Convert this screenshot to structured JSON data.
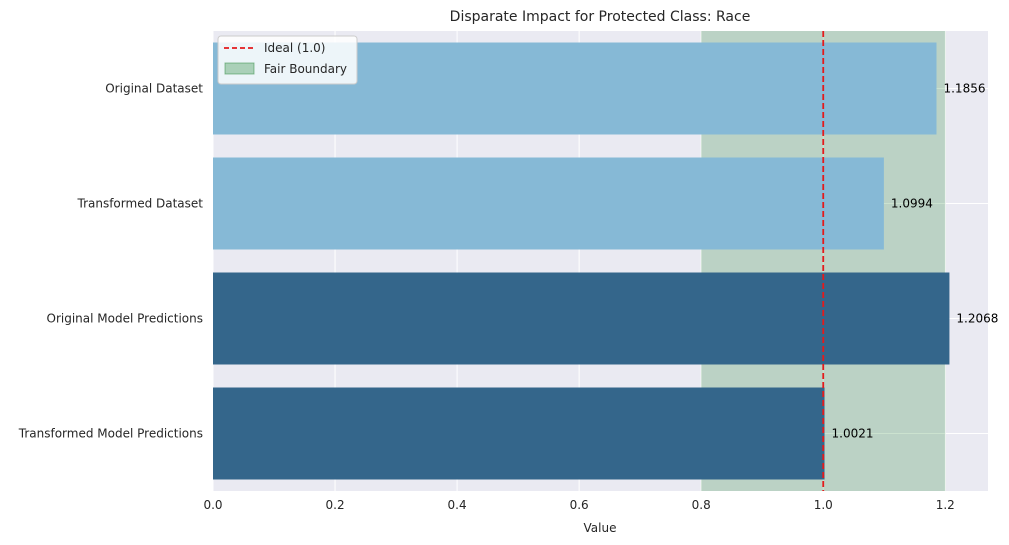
{
  "chart_data": {
    "type": "bar",
    "orientation": "horizontal",
    "title": "Disparate Impact for Protected Class: Race",
    "xlabel": "Value",
    "ylabel": "",
    "xlim": [
      0,
      1.27
    ],
    "x_ticks": [
      "0.0",
      "0.2",
      "0.4",
      "0.6",
      "0.8",
      "1.0",
      "1.2"
    ],
    "categories": [
      "Original Dataset",
      "Transformed Dataset",
      "Original Model Predictions",
      "Transformed Model Predictions"
    ],
    "values": [
      1.1856,
      1.0994,
      1.2068,
      1.0021
    ],
    "value_labels": [
      "1.1856",
      "1.0994",
      "1.2068",
      "1.0021"
    ],
    "bar_colors": [
      "#86b9d6",
      "#86b9d6",
      "#34668b",
      "#34668b"
    ],
    "reference_line": {
      "label": "Ideal (1.0)",
      "value": 1.0,
      "color": "#e41a1c",
      "style": "dashed"
    },
    "fair_band": {
      "label": "Fair Boundary",
      "min": 0.8,
      "max": 1.2,
      "color": "#2e8b3e",
      "opacity": 0.25
    },
    "legend_position": "upper-left",
    "grid": true,
    "background": "#eaeaf2"
  }
}
